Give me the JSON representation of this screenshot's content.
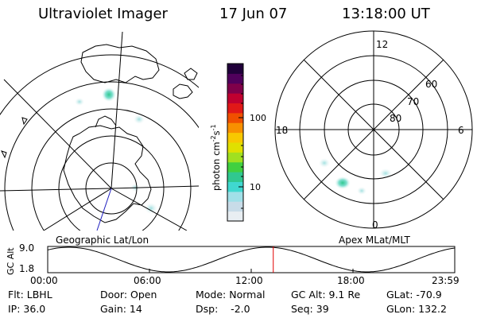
{
  "header": {
    "title": "Ultraviolet Imager",
    "date": "17 Jun 07",
    "time": "13:18:00 UT"
  },
  "geo_panel": {
    "caption": "Geographic Lat/Lon"
  },
  "mag_panel": {
    "caption": "Apex MLat/MLT",
    "mlt_labels": [
      "12",
      "18",
      "6",
      "0"
    ],
    "lat_labels": [
      "60",
      "70",
      "80"
    ]
  },
  "colorbar": {
    "unit_label": "photon cm",
    "unit_exp1": "-2",
    "unit_s": "s",
    "unit_exp2": "-1",
    "ticks": [
      "100",
      "10"
    ],
    "colors": [
      "#e8eef2",
      "#c8dce8",
      "#a0e0e8",
      "#40d8d0",
      "#30c890",
      "#40d040",
      "#a0e020",
      "#e0e000",
      "#f8c800",
      "#f89000",
      "#f05000",
      "#e01818",
      "#c00030",
      "#80004a",
      "#50005c",
      "#20003a"
    ]
  },
  "altitude_plot": {
    "ylabel": "GC Alt",
    "yticks": [
      "9.0",
      "1.8"
    ],
    "xticks": [
      "00:00",
      "06:00",
      "12:00",
      "18:00",
      "23:59"
    ],
    "marker_time_hours": 13.3,
    "marker_color": "#e00000"
  },
  "status": {
    "filter": "Flt: LBHL",
    "ip": "IP: 36.0",
    "door": "Door: Open",
    "gain": "Gain: 14",
    "mode": "Mode: Normal",
    "dsp": "Dsp:    -2.0",
    "gc_alt": "GC Alt: 9.1 Re",
    "seq": "Seq: 39",
    "glat": "GLat: -70.9",
    "glon": "GLon: 132.2"
  }
}
